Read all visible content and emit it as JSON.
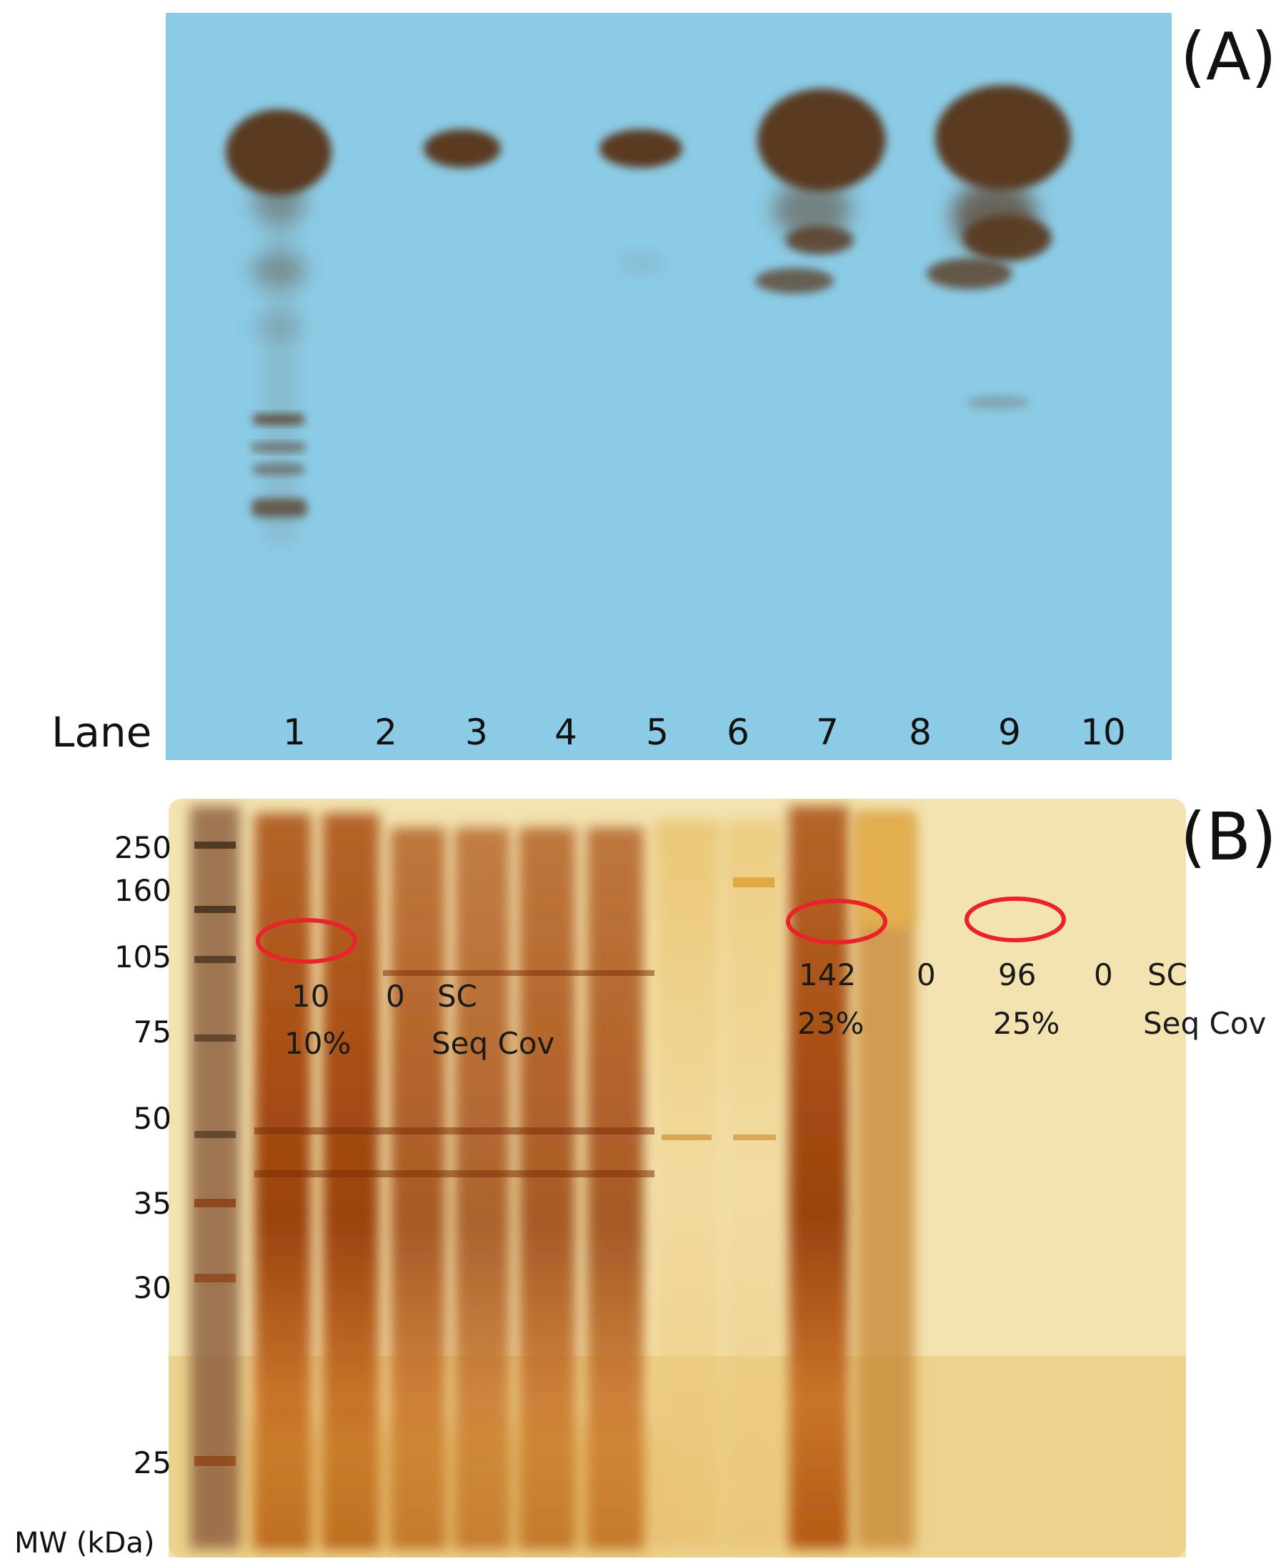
{
  "panelA": {
    "label": "(A)",
    "lane_word": "Lane",
    "lanes": [
      "1",
      "2",
      "3",
      "4",
      "5",
      "6",
      "7",
      "8",
      "9",
      "10"
    ]
  },
  "panelB": {
    "label": "(B)",
    "mw_axis_label": "MW (kDa)",
    "mw_markers": [
      "250",
      "160",
      "105",
      "75",
      "50",
      "35",
      "30",
      "25"
    ],
    "annotations": {
      "g1_sc": "10",
      "g1_cov": "10%",
      "g2_sc": "0",
      "g3_sc_label": "SC",
      "g3_cov_label": "Seq Cov",
      "g4_sc": "142",
      "g4_cov": "23%",
      "g5_sc": "0",
      "g6_sc": "96",
      "g6_cov": "25%",
      "g7_sc": "0",
      "g8_sc_label": "SC",
      "g8_cov_label": "Seq Cov"
    }
  },
  "colors": {
    "film_blue": "#8ccbe5",
    "band_brown": "#5a3b24",
    "gel_base": "#f3e3b0",
    "lane_stain": "#a04a10",
    "circle_red": "#e8232a"
  }
}
